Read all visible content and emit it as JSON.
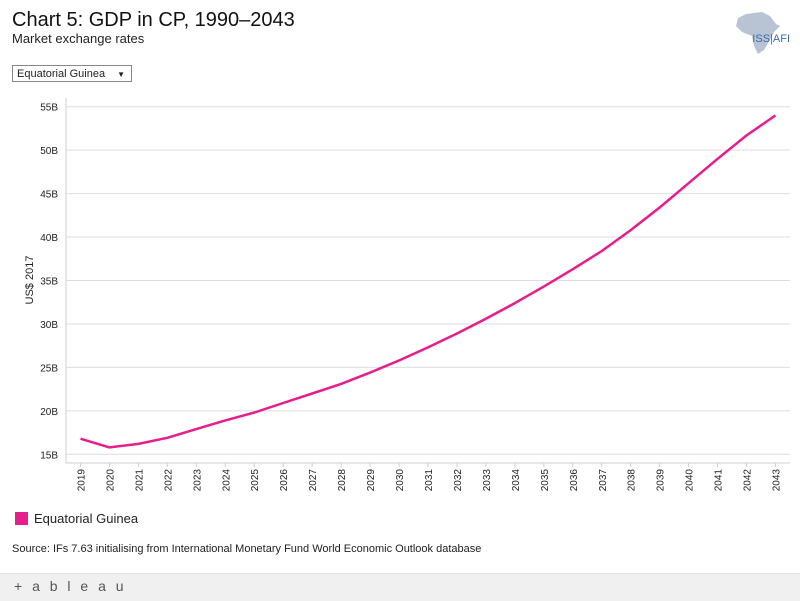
{
  "header": {
    "title": "Chart 5: GDP in CP, 1990–2043",
    "subtitle": "Market exchange rates",
    "logo_text": "ISS|AFI"
  },
  "filter": {
    "selected": "Equatorial Guinea"
  },
  "chart_data": {
    "type": "line",
    "title": "Chart 5: GDP in CP, 1990–2043",
    "subtitle": "Market exchange rates",
    "xlabel": "",
    "ylabel": "US$ 2017",
    "ylim": [
      14,
      56
    ],
    "yticks": [
      15,
      20,
      25,
      30,
      35,
      40,
      45,
      50,
      55
    ],
    "ytick_labels": [
      "15B",
      "20B",
      "25B",
      "30B",
      "35B",
      "40B",
      "45B",
      "50B",
      "55B"
    ],
    "x": [
      "2019",
      "2020",
      "2021",
      "2022",
      "2023",
      "2024",
      "2025",
      "2026",
      "2027",
      "2028",
      "2029",
      "2030",
      "2031",
      "2032",
      "2033",
      "2034",
      "2035",
      "2036",
      "2037",
      "2038",
      "2039",
      "2040",
      "2041",
      "2042",
      "2043"
    ],
    "series": [
      {
        "name": "Equatorial Guinea",
        "color": "#e61e8c",
        "values": [
          16.8,
          15.8,
          16.2,
          16.9,
          17.9,
          18.9,
          19.8,
          20.9,
          22.0,
          23.1,
          24.4,
          25.8,
          27.3,
          28.9,
          30.6,
          32.4,
          34.3,
          36.3,
          38.4,
          40.8,
          43.4,
          46.2,
          49.0,
          51.7,
          54.0
        ]
      }
    ],
    "legend": "bottom-left"
  },
  "legend": {
    "label": "Equatorial Guinea"
  },
  "source": "Source: IFs 7.63 initialising from International Monetary Fund World Economic Outlook database",
  "footer": {
    "brand": "+ a b l e a u"
  }
}
